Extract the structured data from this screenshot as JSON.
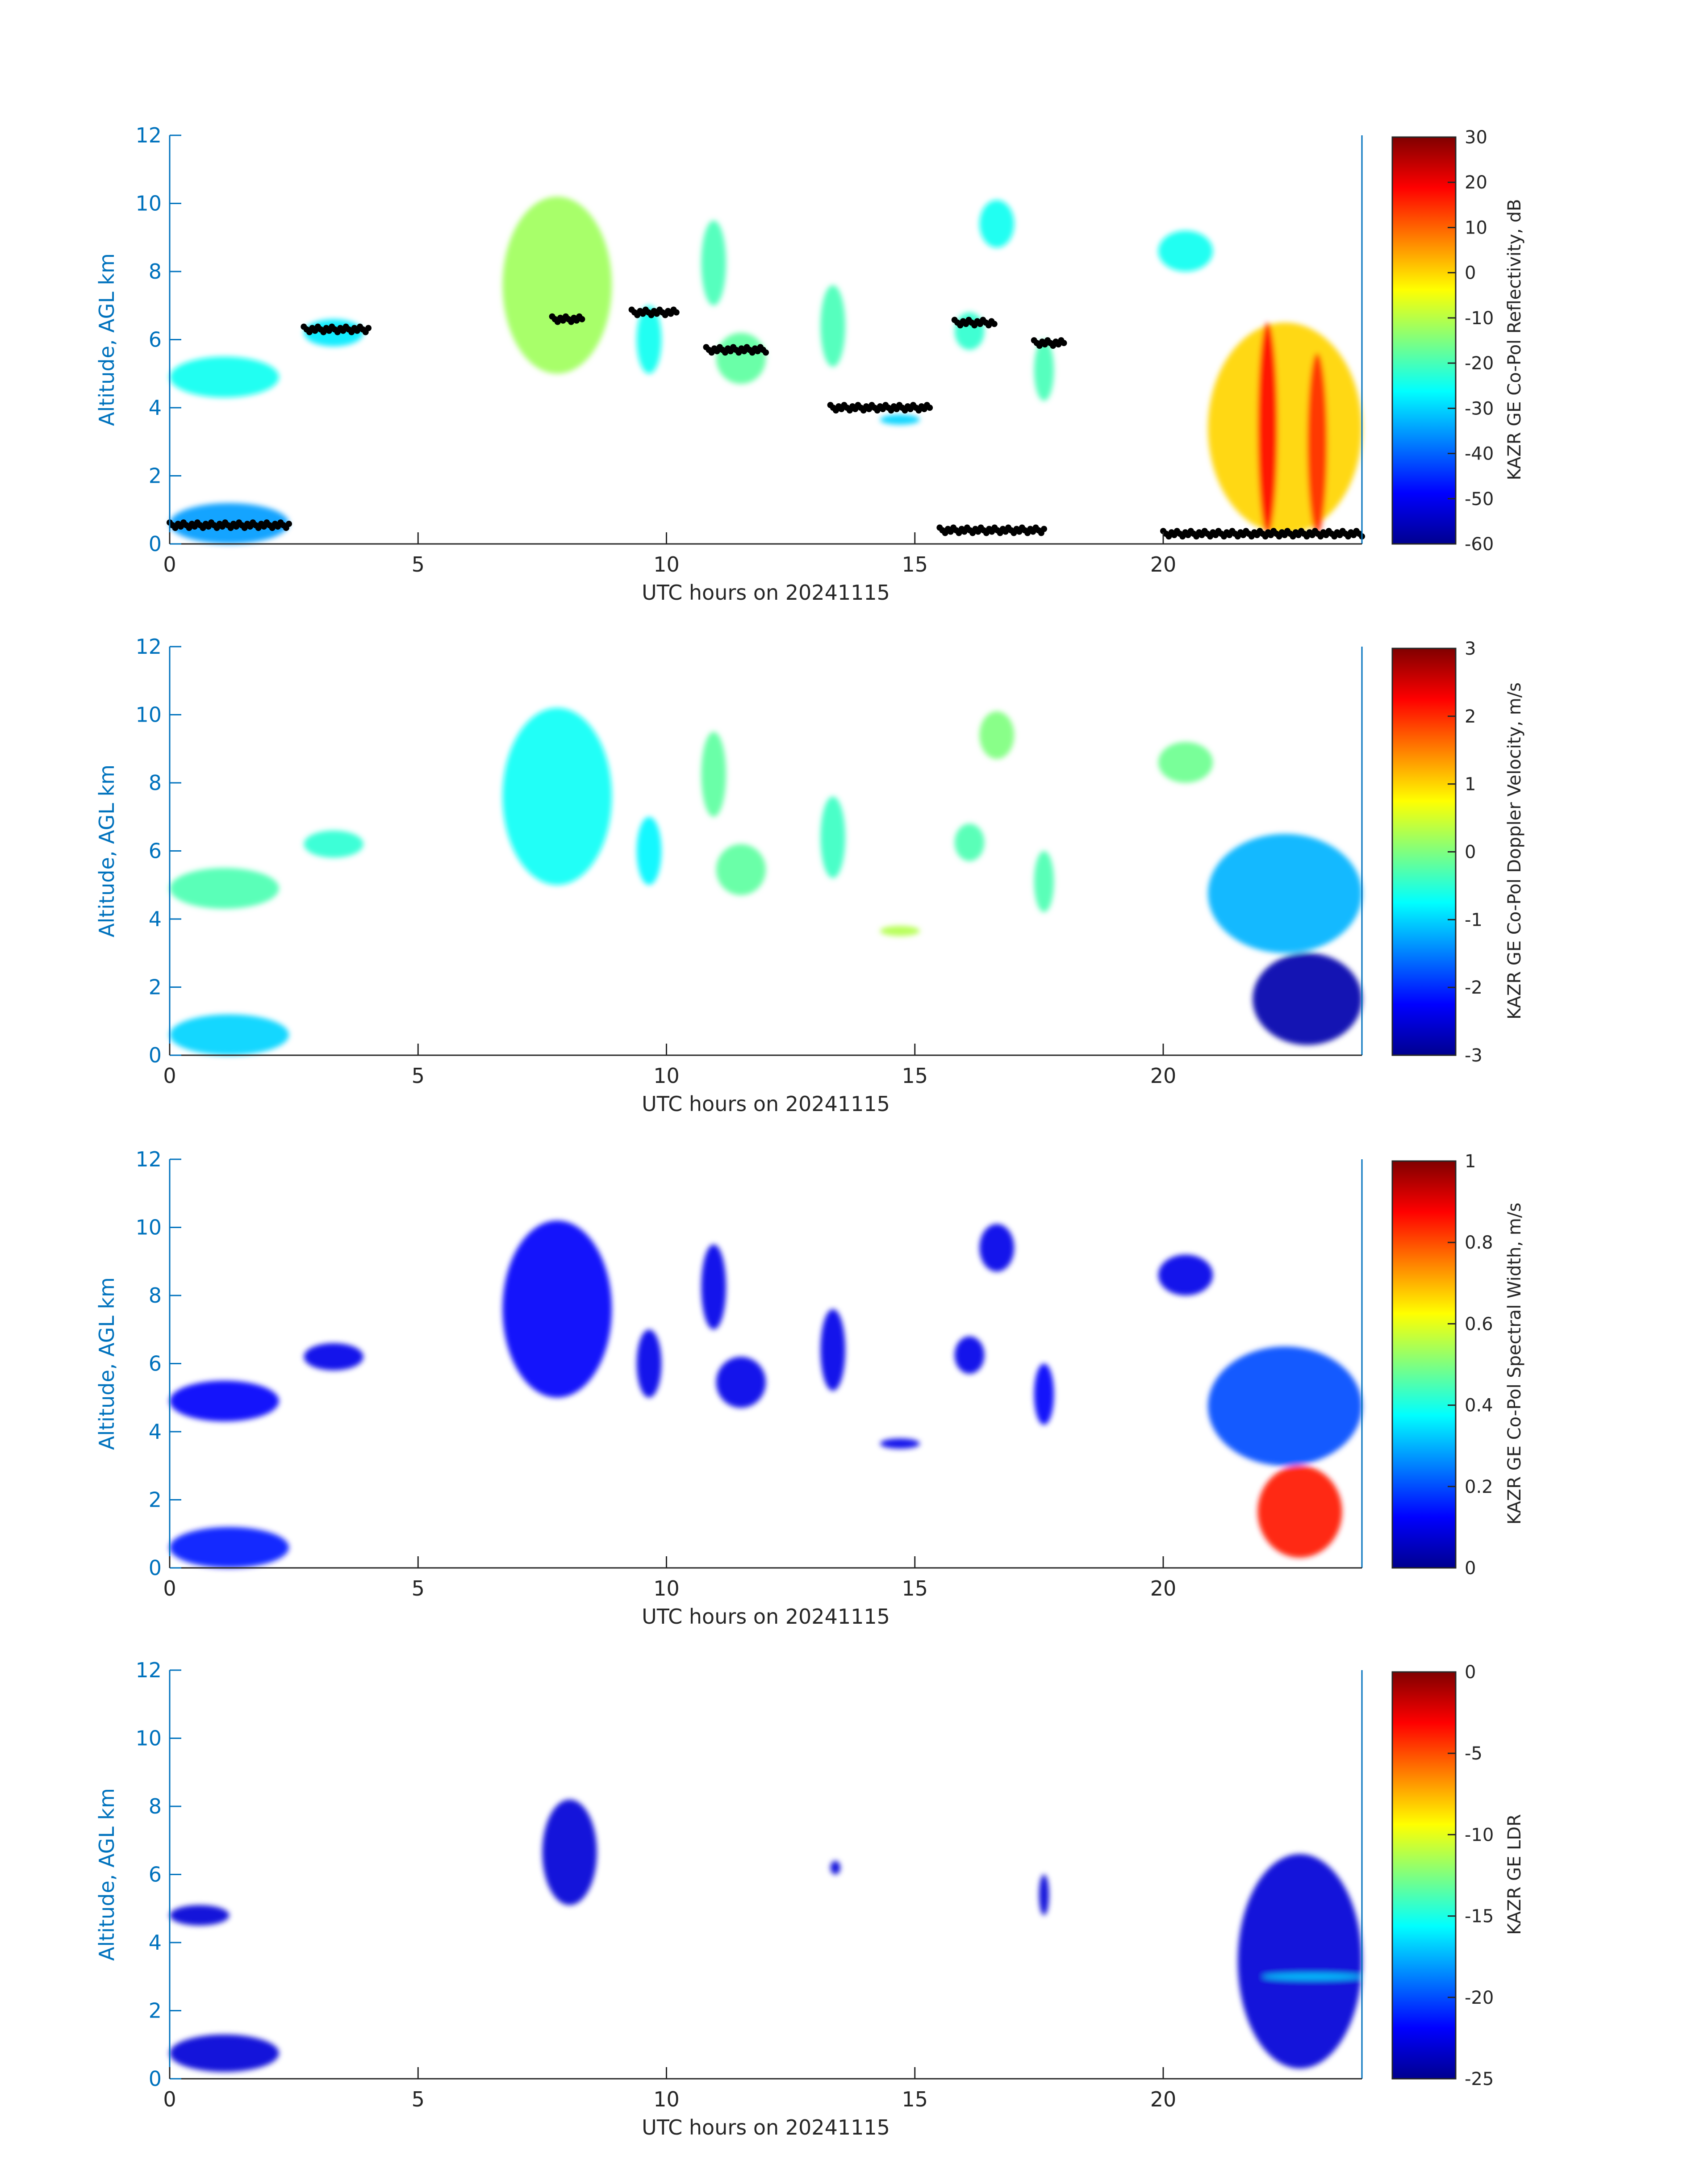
{
  "figure": {
    "date": "20241115"
  },
  "chart_data": [
    {
      "type": "heatmap",
      "variable": "reflectivity",
      "xlabel": "UTC hours on 20241115",
      "ylabel": "Altitude, AGL km",
      "xlim": [
        0,
        24
      ],
      "ylim": [
        0,
        12
      ],
      "xticks": [
        0,
        5,
        10,
        15,
        20
      ],
      "yticks": [
        0,
        2,
        4,
        6,
        8,
        10,
        12
      ],
      "colorbar": {
        "label": "KAZR GE Co-Pol Reflectivity, dB",
        "range": [
          -60,
          30
        ],
        "ticks": [
          30,
          20,
          10,
          0,
          -10,
          -20,
          -30,
          -40,
          -50,
          -60
        ]
      },
      "cloud_layers": [
        {
          "t0": 0.0,
          "t1": 2.2,
          "z0": 4.3,
          "z1": 5.5,
          "value": -25
        },
        {
          "t0": 2.7,
          "t1": 3.9,
          "z0": 5.8,
          "z1": 6.6,
          "value": -28
        },
        {
          "t0": 6.7,
          "t1": 8.9,
          "z0": 5.0,
          "z1": 10.2,
          "value": -12
        },
        {
          "t0": 9.4,
          "t1": 9.9,
          "z0": 5.0,
          "z1": 7.0,
          "value": -25
        },
        {
          "t0": 10.7,
          "t1": 11.2,
          "z0": 7.0,
          "z1": 9.5,
          "value": -20
        },
        {
          "t0": 11.0,
          "t1": 12.0,
          "z0": 4.7,
          "z1": 6.2,
          "value": -18
        },
        {
          "t0": 13.1,
          "t1": 13.6,
          "z0": 5.2,
          "z1": 7.6,
          "value": -20
        },
        {
          "t0": 14.3,
          "t1": 15.1,
          "z0": 3.5,
          "z1": 3.8,
          "value": -30
        },
        {
          "t0": 15.8,
          "t1": 16.4,
          "z0": 5.7,
          "z1": 6.8,
          "value": -22
        },
        {
          "t0": 16.3,
          "t1": 17.0,
          "z0": 8.7,
          "z1": 10.1,
          "value": -25
        },
        {
          "t0": 17.4,
          "t1": 17.8,
          "z0": 4.2,
          "z1": 6.0,
          "value": -20
        },
        {
          "t0": 19.9,
          "t1": 21.0,
          "z0": 8.0,
          "z1": 9.2,
          "value": -25
        },
        {
          "t0": 20.9,
          "t1": 24.0,
          "z0": 0.3,
          "z1": 6.5,
          "value": 0
        },
        {
          "t0": 21.9,
          "t1": 22.3,
          "z0": 0.3,
          "z1": 6.5,
          "value": 18
        },
        {
          "t0": 22.9,
          "t1": 23.3,
          "z0": 0.3,
          "z1": 5.6,
          "value": 15
        },
        {
          "t0": 0.0,
          "t1": 2.4,
          "z0": 0.0,
          "z1": 1.2,
          "value": -35
        }
      ],
      "ceilometer_cloud_base_points": [
        {
          "t0": 0.0,
          "t1": 2.4,
          "z": 0.55
        },
        {
          "t0": 2.7,
          "t1": 4.0,
          "z": 6.3
        },
        {
          "t0": 7.7,
          "t1": 8.3,
          "z": 6.6
        },
        {
          "t0": 9.3,
          "t1": 10.2,
          "z": 6.8
        },
        {
          "t0": 10.8,
          "t1": 12.0,
          "z": 5.7
        },
        {
          "t0": 13.3,
          "t1": 15.3,
          "z": 4.0
        },
        {
          "t0": 15.8,
          "t1": 16.6,
          "z": 6.5
        },
        {
          "t0": 17.4,
          "t1": 18.0,
          "z": 5.9
        },
        {
          "t0": 20.0,
          "t1": 24.0,
          "z": 0.3
        },
        {
          "t0": 15.5,
          "t1": 17.6,
          "z": 0.4
        }
      ]
    },
    {
      "type": "heatmap",
      "variable": "doppler_velocity",
      "xlabel": "UTC hours on 20241115",
      "ylabel": "Altitude, AGL km",
      "xlim": [
        0,
        24
      ],
      "ylim": [
        0,
        12
      ],
      "xticks": [
        0,
        5,
        10,
        15,
        20
      ],
      "yticks": [
        0,
        2,
        4,
        6,
        8,
        10,
        12
      ],
      "colorbar": {
        "label": "KAZR GE Co-Pol Doppler Velocity, m/s",
        "range": [
          -3,
          3
        ],
        "ticks": [
          3,
          2,
          1,
          0,
          -1,
          -2,
          -3
        ]
      },
      "cloud_layers": [
        {
          "t0": 0.0,
          "t1": 2.2,
          "z0": 4.3,
          "z1": 5.5,
          "value": -0.3
        },
        {
          "t0": 2.7,
          "t1": 3.9,
          "z0": 5.8,
          "z1": 6.6,
          "value": -0.5
        },
        {
          "t0": 6.7,
          "t1": 8.9,
          "z0": 5.0,
          "z1": 10.2,
          "value": -0.7
        },
        {
          "t0": 9.4,
          "t1": 9.9,
          "z0": 5.0,
          "z1": 7.0,
          "value": -0.8
        },
        {
          "t0": 10.7,
          "t1": 11.2,
          "z0": 7.0,
          "z1": 9.5,
          "value": -0.2
        },
        {
          "t0": 11.0,
          "t1": 12.0,
          "z0": 4.7,
          "z1": 6.2,
          "value": -0.2
        },
        {
          "t0": 13.1,
          "t1": 13.6,
          "z0": 5.2,
          "z1": 7.6,
          "value": -0.4
        },
        {
          "t0": 14.3,
          "t1": 15.1,
          "z0": 3.5,
          "z1": 3.8,
          "value": 0.3
        },
        {
          "t0": 15.8,
          "t1": 16.4,
          "z0": 5.7,
          "z1": 6.8,
          "value": -0.3
        },
        {
          "t0": 16.3,
          "t1": 17.0,
          "z0": 8.7,
          "z1": 10.1,
          "value": 0.0
        },
        {
          "t0": 17.4,
          "t1": 17.8,
          "z0": 4.2,
          "z1": 6.0,
          "value": -0.3
        },
        {
          "t0": 19.9,
          "t1": 21.0,
          "z0": 8.0,
          "z1": 9.2,
          "value": -0.1
        },
        {
          "t0": 20.9,
          "t1": 24.0,
          "z0": 3.0,
          "z1": 6.5,
          "value": -1.2
        },
        {
          "t0": 21.8,
          "t1": 24.0,
          "z0": 0.3,
          "z1": 3.0,
          "value": -2.8
        },
        {
          "t0": 0.0,
          "t1": 2.4,
          "z0": 0.0,
          "z1": 1.2,
          "value": -1.0
        }
      ]
    },
    {
      "type": "heatmap",
      "variable": "spectral_width",
      "xlabel": "UTC hours on 20241115",
      "ylabel": "Altitude, AGL km",
      "xlim": [
        0,
        24
      ],
      "ylim": [
        0,
        12
      ],
      "xticks": [
        0,
        5,
        10,
        15,
        20
      ],
      "yticks": [
        0,
        2,
        4,
        6,
        8,
        10,
        12
      ],
      "colorbar": {
        "label": "KAZR GE Co-Pol Spectral Width, m/s",
        "range": [
          0,
          1
        ],
        "ticks": [
          1,
          0.8,
          0.6,
          0.4,
          0.2,
          0
        ]
      },
      "cloud_layers": [
        {
          "t0": 0.0,
          "t1": 2.2,
          "z0": 4.3,
          "z1": 5.5,
          "value": 0.12
        },
        {
          "t0": 2.7,
          "t1": 3.9,
          "z0": 5.8,
          "z1": 6.6,
          "value": 0.1
        },
        {
          "t0": 6.7,
          "t1": 8.9,
          "z0": 5.0,
          "z1": 10.2,
          "value": 0.12
        },
        {
          "t0": 9.4,
          "t1": 9.9,
          "z0": 5.0,
          "z1": 7.0,
          "value": 0.1
        },
        {
          "t0": 10.7,
          "t1": 11.2,
          "z0": 7.0,
          "z1": 9.5,
          "value": 0.1
        },
        {
          "t0": 11.0,
          "t1": 12.0,
          "z0": 4.7,
          "z1": 6.2,
          "value": 0.1
        },
        {
          "t0": 13.1,
          "t1": 13.6,
          "z0": 5.2,
          "z1": 7.6,
          "value": 0.1
        },
        {
          "t0": 14.3,
          "t1": 15.1,
          "z0": 3.5,
          "z1": 3.8,
          "value": 0.1
        },
        {
          "t0": 15.8,
          "t1": 16.4,
          "z0": 5.7,
          "z1": 6.8,
          "value": 0.1
        },
        {
          "t0": 16.3,
          "t1": 17.0,
          "z0": 8.7,
          "z1": 10.1,
          "value": 0.1
        },
        {
          "t0": 17.4,
          "t1": 17.8,
          "z0": 4.2,
          "z1": 6.0,
          "value": 0.12
        },
        {
          "t0": 19.9,
          "t1": 21.0,
          "z0": 8.0,
          "z1": 9.2,
          "value": 0.1
        },
        {
          "t0": 20.9,
          "t1": 24.0,
          "z0": 3.0,
          "z1": 6.5,
          "value": 0.2
        },
        {
          "t0": 21.9,
          "t1": 23.6,
          "z0": 0.3,
          "z1": 3.0,
          "value": 0.85
        },
        {
          "t0": 0.0,
          "t1": 2.4,
          "z0": 0.0,
          "z1": 1.2,
          "value": 0.15
        }
      ]
    },
    {
      "type": "heatmap",
      "variable": "ldr",
      "xlabel": "UTC hours on 20241115",
      "ylabel": "Altitude, AGL km",
      "xlim": [
        0,
        24
      ],
      "ylim": [
        0,
        12
      ],
      "xticks": [
        0,
        5,
        10,
        15,
        20
      ],
      "yticks": [
        0,
        2,
        4,
        6,
        8,
        10,
        12
      ],
      "colorbar": {
        "label": "KAZR GE LDR",
        "range": [
          -25,
          0
        ],
        "ticks": [
          0,
          -5,
          -10,
          -15,
          -20,
          -25
        ]
      },
      "cloud_layers": [
        {
          "t0": 7.5,
          "t1": 8.6,
          "z0": 5.1,
          "z1": 8.2,
          "value": -23
        },
        {
          "t0": 13.3,
          "t1": 13.5,
          "z0": 6.0,
          "z1": 6.4,
          "value": -23
        },
        {
          "t0": 17.5,
          "t1": 17.7,
          "z0": 4.8,
          "z1": 6.0,
          "value": -23
        },
        {
          "t0": 21.5,
          "t1": 24.0,
          "z0": 0.3,
          "z1": 6.6,
          "value": -23
        },
        {
          "t0": 22.0,
          "t1": 24.0,
          "z0": 2.9,
          "z1": 3.1,
          "value": -17
        },
        {
          "t0": 0.0,
          "t1": 1.2,
          "z0": 4.5,
          "z1": 5.1,
          "value": -23
        },
        {
          "t0": 0.0,
          "t1": 2.2,
          "z0": 0.2,
          "z1": 1.3,
          "value": -23
        }
      ]
    }
  ]
}
